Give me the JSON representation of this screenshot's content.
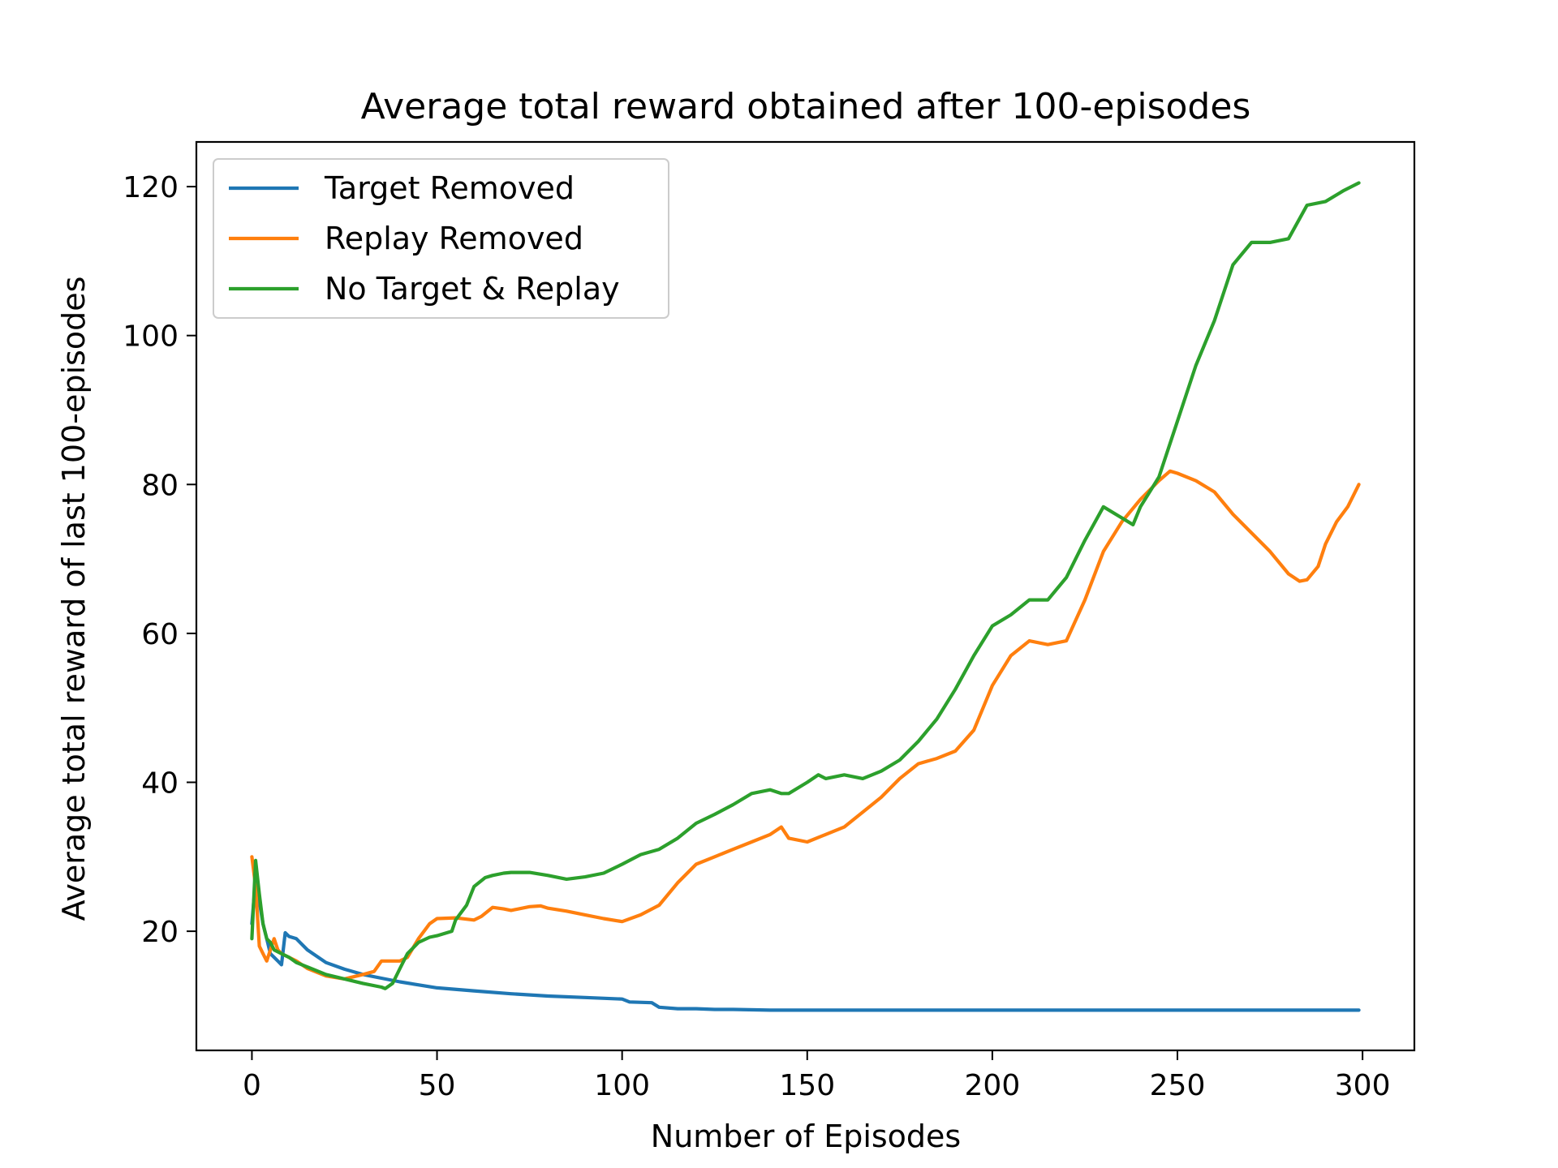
{
  "chart_data": {
    "type": "line",
    "title": "Average total reward obtained  after 100-episodes",
    "xlabel": "Number of Episodes",
    "ylabel": "Average total reward of last 100-episodes",
    "xlim": [
      -15,
      314
    ],
    "ylim": [
      4,
      126
    ],
    "xticks": [
      0,
      50,
      100,
      150,
      200,
      250,
      300
    ],
    "yticks": [
      20,
      40,
      60,
      80,
      100,
      120
    ],
    "xtick_labels": [
      "0",
      "50",
      "100",
      "150",
      "200",
      "250",
      "300"
    ],
    "ytick_labels": [
      "20",
      "40",
      "60",
      "80",
      "100",
      "120"
    ],
    "grid": false,
    "legend_position": "upper-left",
    "series": [
      {
        "name": "Target Removed",
        "color": "#1f77b4",
        "x": [
          0,
          1,
          2,
          3,
          4,
          5,
          6,
          7,
          8,
          9,
          10,
          12,
          15,
          20,
          25,
          30,
          35,
          40,
          50,
          60,
          70,
          80,
          90,
          100,
          102,
          108,
          110,
          115,
          120,
          125,
          130,
          140,
          150,
          160,
          170,
          180,
          190,
          200,
          210,
          220,
          230,
          240,
          250,
          260,
          270,
          280,
          290,
          299
        ],
        "y": [
          21,
          27,
          24,
          21,
          19,
          17,
          16.5,
          16,
          15.5,
          19.8,
          19.3,
          19.0,
          17.5,
          15.8,
          14.9,
          14.2,
          13.7,
          13.2,
          12.4,
          12.0,
          11.6,
          11.3,
          11.1,
          10.9,
          10.5,
          10.4,
          9.8,
          9.6,
          9.6,
          9.5,
          9.5,
          9.4,
          9.4,
          9.4,
          9.4,
          9.4,
          9.4,
          9.4,
          9.4,
          9.4,
          9.4,
          9.4,
          9.4,
          9.4,
          9.4,
          9.4,
          9.4,
          9.4
        ]
      },
      {
        "name": "Replay Removed",
        "color": "#ff7f0e",
        "x": [
          0,
          1,
          2,
          3,
          4,
          5,
          6,
          7,
          8,
          10,
          12,
          15,
          20,
          25,
          30,
          33,
          35,
          40,
          42,
          45,
          48,
          50,
          55,
          60,
          62,
          65,
          68,
          70,
          75,
          78,
          80,
          85,
          90,
          95,
          100,
          105,
          110,
          115,
          120,
          125,
          130,
          135,
          140,
          143,
          145,
          150,
          155,
          160,
          165,
          170,
          175,
          180,
          185,
          190,
          195,
          200,
          205,
          210,
          215,
          220,
          225,
          230,
          235,
          240,
          245,
          248,
          250,
          255,
          260,
          265,
          270,
          275,
          280,
          283,
          285,
          288,
          290,
          293,
          296,
          299
        ],
        "y": [
          30,
          26,
          18,
          17,
          16,
          17.5,
          19,
          17.5,
          17,
          16.5,
          16,
          15,
          14,
          13.6,
          14.2,
          14.6,
          16,
          16,
          16.5,
          19,
          21,
          21.7,
          21.8,
          21.5,
          22,
          23.2,
          23,
          22.8,
          23.3,
          23.4,
          23.1,
          22.7,
          22.2,
          21.7,
          21.3,
          22.2,
          23.5,
          26.5,
          29,
          30,
          31,
          32,
          33,
          34,
          32.5,
          32,
          33,
          34,
          36,
          38,
          40.5,
          42.5,
          43.2,
          44.2,
          47,
          53,
          57,
          59,
          58.5,
          59,
          64.5,
          71,
          75,
          78,
          80.5,
          81.8,
          81.5,
          80.5,
          79,
          76,
          73.5,
          71,
          68,
          67,
          67.2,
          69,
          72,
          75,
          77,
          80
        ]
      },
      {
        "name": "No Target & Replay",
        "color": "#2ca02c",
        "x": [
          0,
          1,
          2,
          3,
          4,
          5,
          6,
          8,
          10,
          12,
          15,
          20,
          25,
          30,
          35,
          36,
          38,
          40,
          42,
          45,
          48,
          50,
          54,
          55,
          58,
          60,
          63,
          65,
          68,
          70,
          75,
          80,
          85,
          90,
          95,
          100,
          105,
          110,
          115,
          120,
          125,
          130,
          135,
          140,
          143,
          145,
          150,
          153,
          155,
          160,
          165,
          170,
          175,
          180,
          185,
          190,
          195,
          200,
          205,
          210,
          215,
          220,
          225,
          230,
          235,
          238,
          240,
          245,
          250,
          255,
          260,
          265,
          270,
          275,
          280,
          285,
          290,
          295,
          299
        ],
        "y": [
          19,
          29.5,
          25,
          21,
          19,
          18.5,
          17.5,
          17,
          16.5,
          15.8,
          15.2,
          14.2,
          13.6,
          13.0,
          12.5,
          12.3,
          13,
          15,
          17,
          18.5,
          19.2,
          19.4,
          20,
          21.5,
          23.5,
          26,
          27.2,
          27.5,
          27.8,
          27.9,
          27.9,
          27.5,
          27,
          27.3,
          27.8,
          29,
          30.3,
          31,
          32.5,
          34.5,
          35.7,
          37,
          38.5,
          39,
          38.5,
          38.5,
          40,
          41,
          40.5,
          41,
          40.5,
          41.5,
          43,
          45.5,
          48.5,
          52.5,
          57,
          61,
          62.5,
          64.5,
          64.5,
          67.5,
          72.5,
          77,
          75.5,
          74.6,
          77,
          81,
          88.5,
          96,
          102,
          109.5,
          112.5,
          112.5,
          113,
          117.5,
          118,
          119.5,
          120.5
        ]
      }
    ]
  }
}
